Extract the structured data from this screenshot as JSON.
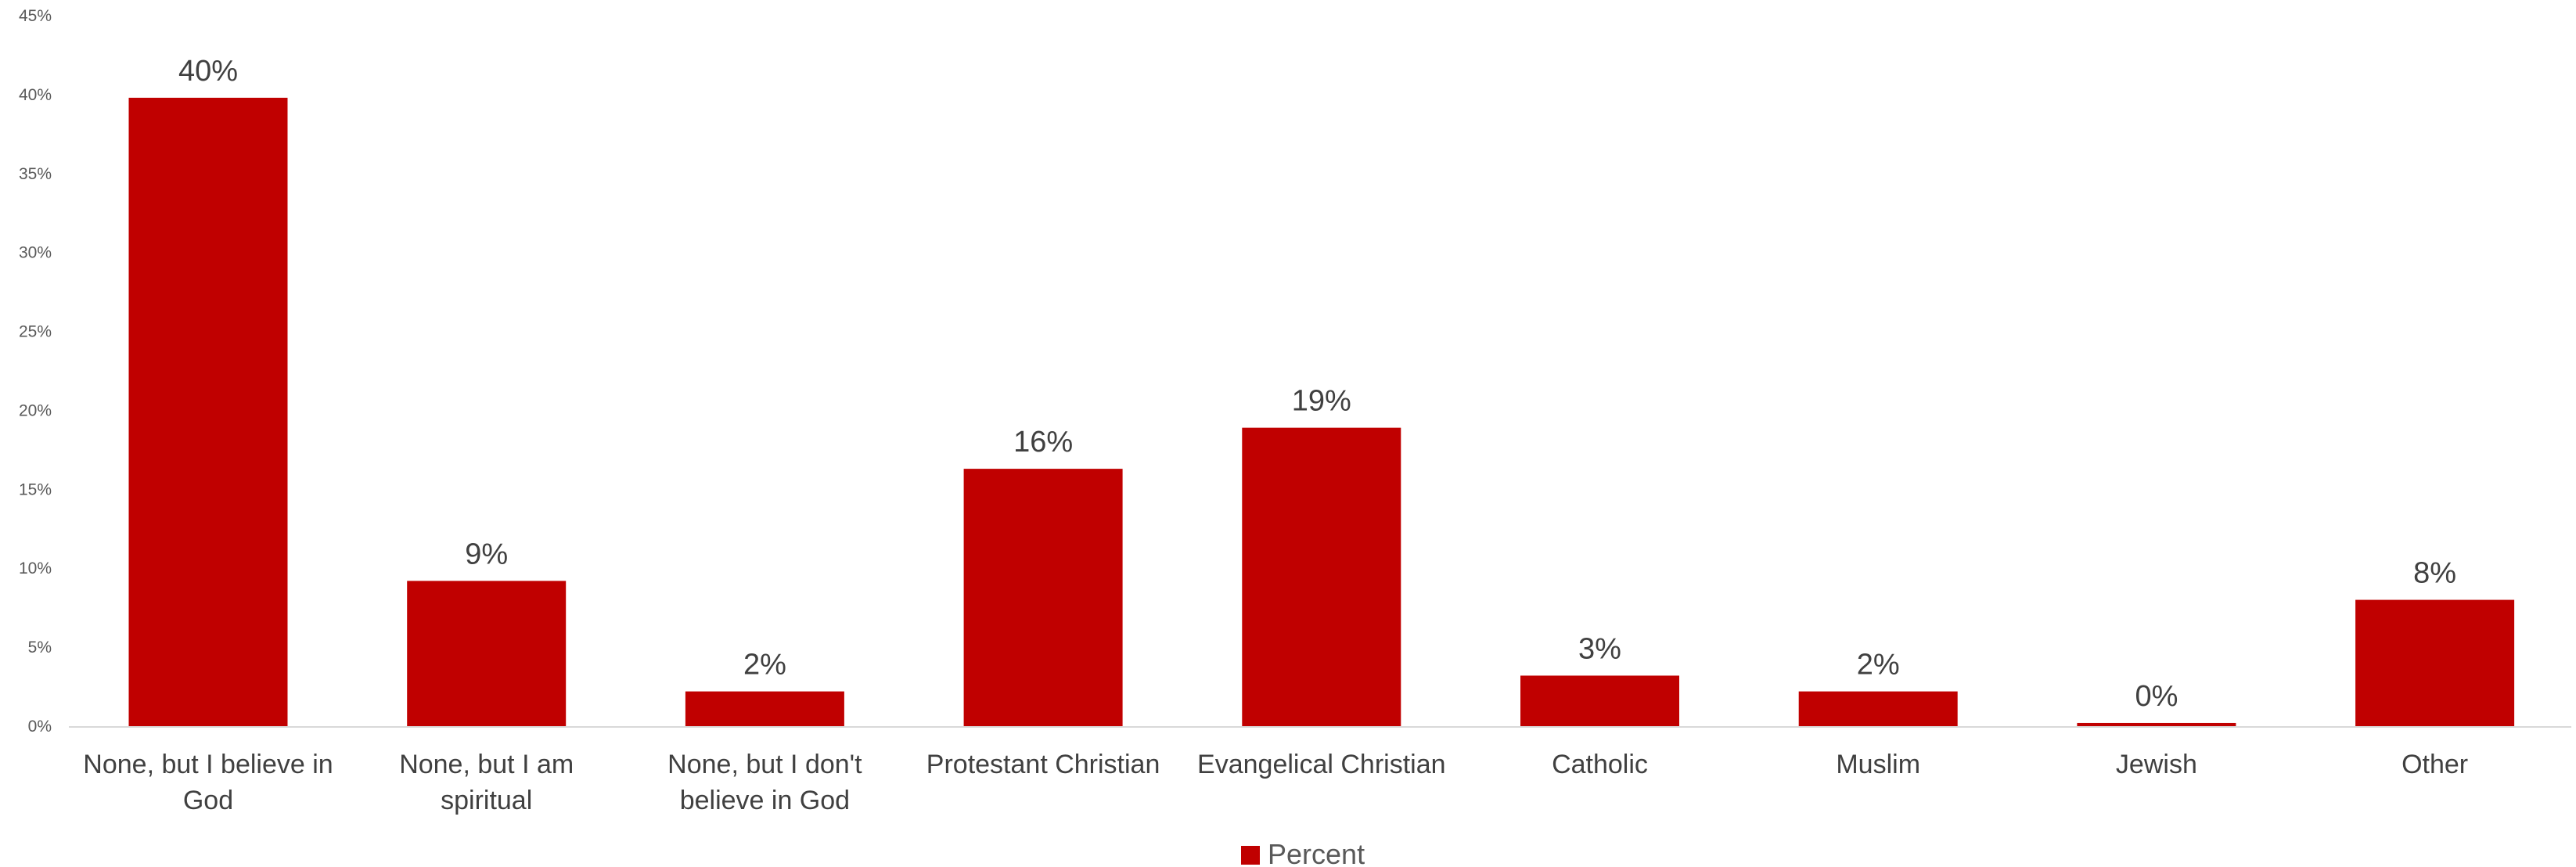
{
  "chart_data": {
    "type": "bar",
    "categories": [
      "None, but I believe in God",
      "None, but I am spiritual",
      "None, but I don't believe in God",
      "Protestant Christian",
      "Evangelical Christian",
      "Catholic",
      "Muslim",
      "Jewish",
      "Other"
    ],
    "category_lines": [
      [
        "None, but I believe in",
        "God"
      ],
      [
        "None, but I am",
        "spiritual"
      ],
      [
        "None, but I don't",
        "believe in God"
      ],
      [
        "Protestant Christian"
      ],
      [
        "Evangelical Christian"
      ],
      [
        "Catholic"
      ],
      [
        "Muslim"
      ],
      [
        "Jewish"
      ],
      [
        "Other"
      ]
    ],
    "series": [
      {
        "name": "Percent",
        "color": "#c00000",
        "values": [
          39.8,
          9.2,
          2.2,
          16.3,
          18.9,
          3.2,
          2.2,
          0.2,
          8.0
        ],
        "data_labels": [
          "40%",
          "9%",
          "2%",
          "16%",
          "19%",
          "3%",
          "2%",
          "0%",
          "8%"
        ]
      }
    ],
    "ylim": [
      0,
      45
    ],
    "yticks": [
      0,
      5,
      10,
      15,
      20,
      25,
      30,
      35,
      40,
      45
    ],
    "ytick_labels": [
      "0%",
      "5%",
      "10%",
      "15%",
      "20%",
      "25%",
      "30%",
      "35%",
      "40%",
      "45%"
    ],
    "title": "",
    "xlabel": "",
    "ylabel": "",
    "grid": false,
    "legend_position": "bottom",
    "axis_color": "#d9d9d9"
  }
}
